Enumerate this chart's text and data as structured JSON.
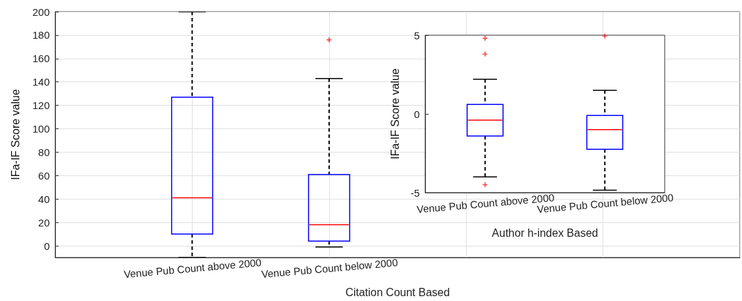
{
  "chart_data": [
    {
      "type": "box",
      "xlabel": "Citation Count Based",
      "ylabel": "IFa-IF Score value",
      "categories": [
        null,
        "Venue Pub Count above 2000",
        "Venue Pub Count below 2000",
        null,
        null,
        null
      ],
      "boxes": [
        null,
        {
          "low": -10,
          "q1": 10,
          "median": 41,
          "q3": 127,
          "high": 200
        },
        {
          "low": -1,
          "q1": 4,
          "median": 18,
          "q3": 61,
          "high": 143,
          "outliers": [
            176
          ]
        },
        null,
        null,
        null
      ],
      "ylim": [
        -10,
        200
      ],
      "yticks": [
        0,
        20,
        40,
        60,
        80,
        100,
        120,
        140,
        160,
        180,
        200
      ],
      "grid": true
    },
    {
      "type": "box",
      "xlabel": "Author h-index Based",
      "ylabel": "IFa-IF Score value",
      "categories": [
        "Venue Pub Count above 2000",
        "Venue Pub Count below 2000"
      ],
      "boxes": [
        {
          "low": -4,
          "q1": -1.4,
          "median": -0.4,
          "q3": 0.6,
          "high": 2.2,
          "outliers": [
            4.8,
            3.8,
            -4.5
          ]
        },
        {
          "low": -4.85,
          "q1": -2.25,
          "median": -1,
          "q3": -0.1,
          "high": 1.5,
          "outliers": [
            4.95
          ]
        }
      ],
      "ylim": [
        -5,
        5
      ],
      "yticks": [
        -5,
        0,
        5
      ],
      "grid": false
    }
  ]
}
